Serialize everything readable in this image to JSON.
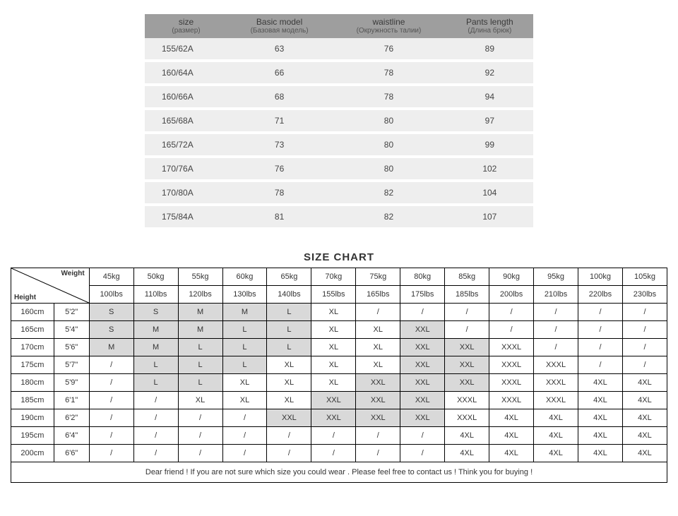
{
  "topTable": {
    "headers": [
      {
        "en": "size",
        "ru": "(размер)"
      },
      {
        "en": "Basic model",
        "ru": "(Базовая модель)"
      },
      {
        "en": "waistline",
        "ru": "(Окружность талии)"
      },
      {
        "en": "Pants length",
        "ru": "(Длина брюк)"
      }
    ],
    "rows": [
      [
        "155/62A",
        "63",
        "76",
        "89"
      ],
      [
        "160/64A",
        "66",
        "78",
        "92"
      ],
      [
        "160/66A",
        "68",
        "78",
        "94"
      ],
      [
        "165/68A",
        "71",
        "80",
        "97"
      ],
      [
        "165/72A",
        "73",
        "80",
        "99"
      ],
      [
        "170/76A",
        "76",
        "80",
        "102"
      ],
      [
        "170/80A",
        "78",
        "82",
        "104"
      ],
      [
        "175/84A",
        "81",
        "82",
        "107"
      ]
    ]
  },
  "sizeChart": {
    "title": "SIZE CHART",
    "cornerWeight": "Weight",
    "cornerHeight": "Height",
    "weightsKg": [
      "45kg",
      "50kg",
      "55kg",
      "60kg",
      "65kg",
      "70kg",
      "75kg",
      "80kg",
      "85kg",
      "90kg",
      "95kg",
      "100kg",
      "105kg"
    ],
    "weightsLbs": [
      "100lbs",
      "110lbs",
      "120lbs",
      "130lbs",
      "140lbs",
      "155lbs",
      "165lbs",
      "175lbs",
      "185lbs",
      "200lbs",
      "210lbs",
      "220lbs",
      "230lbs"
    ],
    "heightsCm": [
      "160cm",
      "165cm",
      "170cm",
      "175cm",
      "180cm",
      "185cm",
      "190cm",
      "195cm",
      "200cm"
    ],
    "heightsFt": [
      "5'2\"",
      "5'4\"",
      "5'6\"",
      "5'7\"",
      "5'9\"",
      "6'1\"",
      "6'2\"",
      "6'4\"",
      "6'6\""
    ],
    "cells": [
      [
        "S",
        "S",
        "M",
        "M",
        "L",
        "XL",
        "/",
        "/",
        "/",
        "/",
        "/",
        "/",
        "/"
      ],
      [
        "S",
        "M",
        "M",
        "L",
        "L",
        "XL",
        "XL",
        "XXL",
        "/",
        "/",
        "/",
        "/",
        "/"
      ],
      [
        "M",
        "M",
        "L",
        "L",
        "L",
        "XL",
        "XL",
        "XXL",
        "XXL",
        "XXXL",
        "/",
        "/",
        "/"
      ],
      [
        "/",
        "L",
        "L",
        "L",
        "XL",
        "XL",
        "XL",
        "XXL",
        "XXL",
        "XXXL",
        "XXXL",
        "/",
        "/"
      ],
      [
        "/",
        "L",
        "L",
        "XL",
        "XL",
        "XL",
        "XXL",
        "XXL",
        "XXL",
        "XXXL",
        "XXXL",
        "4XL",
        "4XL"
      ],
      [
        "/",
        "/",
        "XL",
        "XL",
        "XL",
        "XXL",
        "XXL",
        "XXL",
        "XXXL",
        "XXXL",
        "XXXL",
        "4XL",
        "4XL"
      ],
      [
        "/",
        "/",
        "/",
        "/",
        "XXL",
        "XXL",
        "XXL",
        "XXL",
        "XXXL",
        "4XL",
        "4XL",
        "4XL",
        "4XL"
      ],
      [
        "/",
        "/",
        "/",
        "/",
        "/",
        "/",
        "/",
        "/",
        "4XL",
        "4XL",
        "4XL",
        "4XL",
        "4XL"
      ],
      [
        "/",
        "/",
        "/",
        "/",
        "/",
        "/",
        "/",
        "/",
        "4XL",
        "4XL",
        "4XL",
        "4XL",
        "4XL"
      ]
    ],
    "shade": [
      [
        1,
        1,
        1,
        1,
        1,
        0,
        0,
        0,
        0,
        0,
        0,
        0,
        0
      ],
      [
        1,
        1,
        1,
        1,
        1,
        0,
        0,
        1,
        0,
        0,
        0,
        0,
        0
      ],
      [
        1,
        1,
        1,
        1,
        1,
        0,
        0,
        1,
        1,
        0,
        0,
        0,
        0
      ],
      [
        0,
        1,
        1,
        1,
        0,
        0,
        0,
        1,
        1,
        0,
        0,
        0,
        0
      ],
      [
        0,
        1,
        1,
        0,
        0,
        0,
        1,
        1,
        1,
        0,
        0,
        0,
        0
      ],
      [
        0,
        0,
        0,
        0,
        0,
        1,
        1,
        1,
        0,
        0,
        0,
        0,
        0
      ],
      [
        0,
        0,
        0,
        0,
        1,
        1,
        1,
        1,
        0,
        0,
        0,
        0,
        0
      ],
      [
        0,
        0,
        0,
        0,
        0,
        0,
        0,
        0,
        0,
        0,
        0,
        0,
        0
      ],
      [
        0,
        0,
        0,
        0,
        0,
        0,
        0,
        0,
        0,
        0,
        0,
        0,
        0
      ]
    ],
    "footerNote": "Dear friend ! If you are not sure which size you could wear . Please feel free to contact us ! Think you for buying !",
    "colors": {
      "shadeBg": "#d9d9d9",
      "border": "#000000",
      "topHeaderBg": "#9e9e9e",
      "topRowBg": "#eeeeee"
    }
  }
}
